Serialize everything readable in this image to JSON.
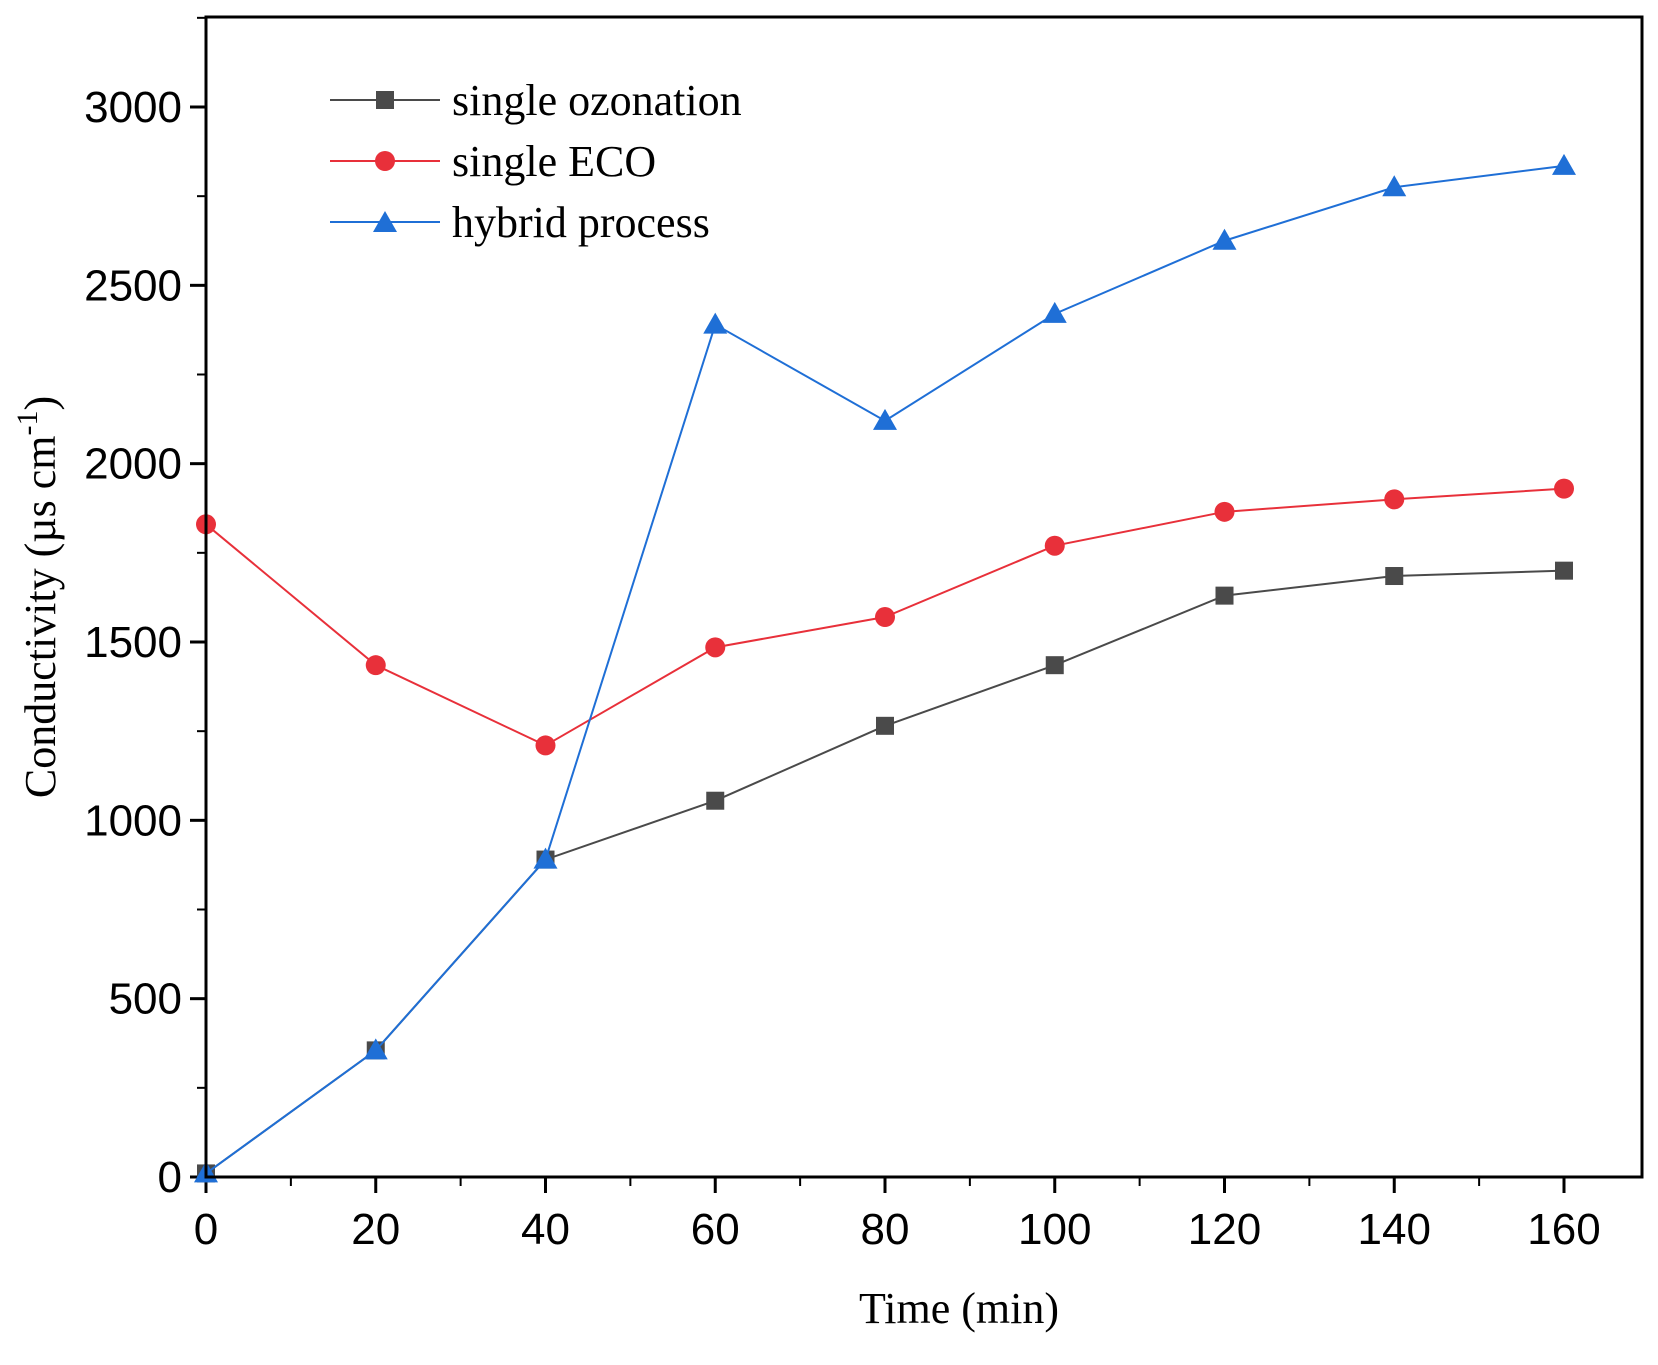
{
  "chart_data": {
    "type": "line",
    "title": "",
    "xlabel": "Time (min)",
    "ylabel_main": "Conductivity (µs cm",
    "ylabel_sup": "-1",
    "ylabel_close": ")",
    "x": [
      0,
      20,
      40,
      60,
      80,
      100,
      120,
      140,
      160
    ],
    "xlim": [
      0,
      170
    ],
    "ylim": [
      0,
      3250
    ],
    "x_ticks": [
      0,
      20,
      40,
      60,
      80,
      100,
      120,
      140,
      160
    ],
    "x_tick_labels": [
      "0",
      "20",
      "40",
      "60",
      "80",
      "100",
      "120",
      "140",
      "160"
    ],
    "y_ticks": [
      0,
      500,
      1000,
      1500,
      2000,
      2500,
      3000
    ],
    "y_tick_labels": [
      "0",
      "500",
      "1000",
      "1500",
      "2000",
      "2500",
      "3000"
    ],
    "grid": false,
    "legend_position": "top-left",
    "series": [
      {
        "name": "single ozonation",
        "color": "#4a4a4a",
        "marker": "square",
        "values": [
          10,
          355,
          890,
          1055,
          1265,
          1435,
          1630,
          1685,
          1700
        ]
      },
      {
        "name": "single ECO",
        "color": "#e8303a",
        "marker": "circle",
        "values": [
          1830,
          1435,
          1210,
          1485,
          1570,
          1770,
          1865,
          1900,
          1930
        ]
      },
      {
        "name": "hybrid process",
        "color": "#1f6fd6",
        "marker": "triangle",
        "values": [
          10,
          355,
          890,
          2390,
          2120,
          2420,
          2625,
          2775,
          2835
        ]
      }
    ]
  }
}
